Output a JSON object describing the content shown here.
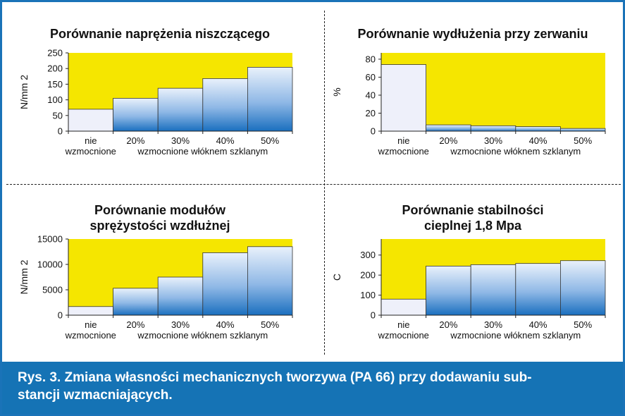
{
  "caption": "Rys. 3. Zmiana własności mechanicznych tworzywa (PA 66) przy dodawaniu substancji wzmacniających.",
  "caption_line1": "Rys. 3. Zmiana własności mechanicznych tworzywa (PA 66) przy dodawaniu sub-",
  "caption_line2": "stancji wzmacniających.",
  "colors": {
    "frame": "#1a73b8",
    "plot_bg": "#f5e600",
    "bar_top": "#e9f1fb",
    "bar_bottom": "#1a6fbf",
    "caption_bg": "#1573b5"
  },
  "chart_data": [
    {
      "type": "bar",
      "title": "Porównanie naprężenia niszczącego",
      "ylabel": "N/mm 2",
      "ylim": [
        0,
        250
      ],
      "yticks": [
        0,
        50,
        100,
        150,
        200,
        250
      ],
      "categories": [
        "nie",
        "20%",
        "30%",
        "40%",
        "50%"
      ],
      "category_sublabels": [
        "wzmocnione",
        "wzmocnione włóknem szklanym"
      ],
      "values": [
        70,
        105,
        137,
        168,
        204
      ],
      "grid": false
    },
    {
      "type": "bar",
      "title": "Porównanie wydłużenia przy zerwaniu",
      "ylabel": "%",
      "ylim": [
        0,
        87
      ],
      "yticks": [
        0,
        20,
        40,
        60,
        80
      ],
      "categories": [
        "nie",
        "20%",
        "30%",
        "40%",
        "50%"
      ],
      "category_sublabels": [
        "wzmocnione",
        "wzmocnione włóknem szklanym"
      ],
      "values": [
        74,
        7,
        6,
        5,
        3
      ],
      "grid": false
    },
    {
      "type": "bar",
      "title": "Porównanie modułów sprężystości wzdłużnej",
      "title_lines": [
        "Porównanie modułów",
        "sprężystości wzdłużnej"
      ],
      "ylabel": "N/mm 2",
      "ylim": [
        0,
        15000
      ],
      "yticks": [
        0,
        5000,
        10000,
        15000
      ],
      "categories": [
        "nie",
        "20%",
        "30%",
        "40%",
        "50%"
      ],
      "category_sublabels": [
        "wzmocnione",
        "wzmocnione włóknem szklanym"
      ],
      "values": [
        1700,
        5300,
        7500,
        12300,
        13500
      ],
      "grid": false
    },
    {
      "type": "bar",
      "title": "Porównanie stabilności cieplnej 1,8 Mpa",
      "title_lines": [
        "Porównanie stabilności",
        "cieplnej 1,8 Mpa"
      ],
      "ylabel": "C",
      "ylim": [
        0,
        380
      ],
      "yticks": [
        0,
        100,
        200,
        300
      ],
      "categories": [
        "nie",
        "20%",
        "30%",
        "40%",
        "50%"
      ],
      "category_sublabels": [
        "wzmocnione",
        "wzmocnione włóknem szklanym"
      ],
      "values": [
        80,
        245,
        252,
        258,
        272
      ],
      "grid": false
    }
  ]
}
